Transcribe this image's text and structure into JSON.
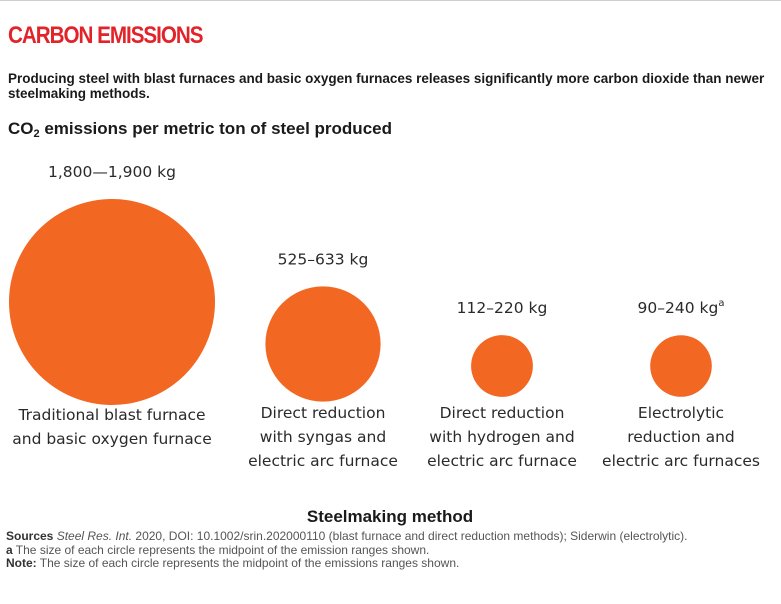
{
  "header": {
    "section_title": "CARBON EMISSIONS",
    "lede": "Producing steel with blast furnaces and basic oxygen furnaces releases significantly more carbon dioxide than newer steelmaking methods.",
    "chart_title_prefix": "CO",
    "chart_title_subscript": "2",
    "chart_title_suffix": " emissions per metric ton of steel produced"
  },
  "chart_data": {
    "type": "bubble",
    "title": "CO2 emissions per metric ton of steel produced",
    "xlabel": "Steelmaking method",
    "unit": "kg",
    "circle_color": "#f26722",
    "size_encodes": "midpoint of emission range",
    "categories": [
      {
        "label_lines": [
          "Traditional blast furnace",
          "and basic oxygen furnace"
        ],
        "range_label": "1,800—1,900 kg",
        "superscript": "",
        "min": 1800,
        "max": 1900,
        "midpoint": 1850
      },
      {
        "label_lines": [
          "Direct reduction",
          "with syngas and",
          "electric arc furnace"
        ],
        "range_label": "525–633 kg",
        "superscript": "",
        "min": 525,
        "max": 633,
        "midpoint": 579
      },
      {
        "label_lines": [
          "Direct reduction",
          "with hydrogen and",
          "electric arc furnace"
        ],
        "range_label": "112–220 kg",
        "superscript": "",
        "min": 112,
        "max": 220,
        "midpoint": 166
      },
      {
        "label_lines": [
          "Electrolytic",
          "reduction and",
          "electric arc furnaces"
        ],
        "range_label": "90–240 kg",
        "superscript": "a",
        "min": 90,
        "max": 240,
        "midpoint": 165
      }
    ]
  },
  "notes": {
    "sources_label": "Sources",
    "sources_journal": "Steel Res. Int.",
    "sources_rest": " 2020, DOI: 10.1002/srin.202000110 (blast furnace and direct reduction methods); Siderwin (electrolytic).",
    "footnote_marker": "a",
    "footnote_text": " The size of each circle represents the midpoint of the emission ranges shown.",
    "note_label": "Note:",
    "note_text": " The size of each circle represents the midpoint of the emissions ranges shown."
  }
}
